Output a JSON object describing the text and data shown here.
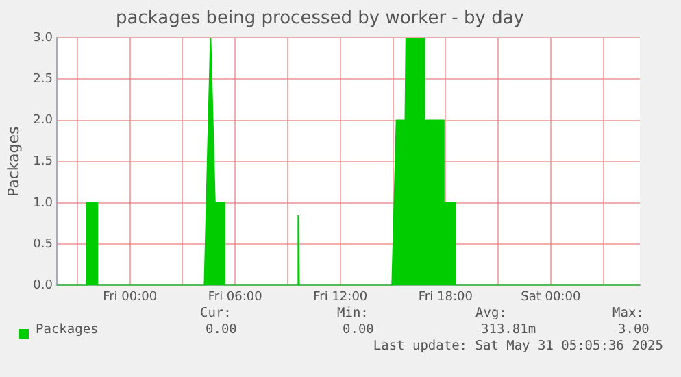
{
  "chart_data": {
    "type": "area",
    "title": "packages being processed by worker - by day",
    "ylabel": "Packages",
    "x": [
      "2025-05-29T19:50",
      "2025-05-29T21:33",
      "2025-05-29T21:33",
      "2025-05-29T22:09",
      "2025-05-29T22:09",
      "2025-05-30T04:15",
      "2025-05-30T04:36",
      "2025-05-30T04:51",
      "2025-05-30T05:24",
      "2025-05-30T05:24",
      "2025-05-30T09:33",
      "2025-05-30T09:36",
      "2025-05-30T09:39",
      "2025-05-30T14:57",
      "2025-05-30T15:12",
      "2025-05-30T15:42",
      "2025-05-30T15:45",
      "2025-05-30T16:48",
      "2025-05-30T16:48",
      "2025-05-30T17:54",
      "2025-05-30T17:54",
      "2025-05-30T18:33",
      "2025-05-30T18:33",
      "2025-05-31T05:05"
    ],
    "series": [
      {
        "name": "Packages",
        "color": "#00cc00",
        "values": [
          0,
          0,
          1,
          1,
          0,
          0,
          3,
          1,
          1,
          0,
          0,
          0.85,
          0,
          0,
          2,
          2,
          3,
          3,
          2,
          2,
          1,
          1,
          0,
          0
        ]
      }
    ],
    "xlim": [
      "2025-05-29T19:50",
      "2025-05-31T05:05"
    ],
    "xticks": [
      {
        "value": "2025-05-29T21:00",
        "label": null
      },
      {
        "value": "2025-05-30T00:00",
        "label": "Fri 00:00"
      },
      {
        "value": "2025-05-30T03:00",
        "label": null
      },
      {
        "value": "2025-05-30T06:00",
        "label": "Fri 06:00"
      },
      {
        "value": "2025-05-30T09:00",
        "label": null
      },
      {
        "value": "2025-05-30T12:00",
        "label": "Fri 12:00"
      },
      {
        "value": "2025-05-30T15:00",
        "label": null
      },
      {
        "value": "2025-05-30T18:00",
        "label": "Fri 18:00"
      },
      {
        "value": "2025-05-30T21:00",
        "label": null
      },
      {
        "value": "2025-05-31T00:00",
        "label": "Sat 00:00"
      },
      {
        "value": "2025-05-31T03:00",
        "label": null
      }
    ],
    "ylim": [
      0,
      3
    ],
    "yticks": [
      {
        "value": 0,
        "label": "0.0"
      },
      {
        "value": 0.5,
        "label": "0.5"
      },
      {
        "value": 1,
        "label": "1.0"
      },
      {
        "value": 1.5,
        "label": "1.5"
      },
      {
        "value": 2,
        "label": "2.0"
      },
      {
        "value": 2.5,
        "label": "2.5"
      },
      {
        "value": 3,
        "label": "3.0"
      }
    ],
    "grid": true,
    "legend": "bottom left",
    "annotations": [
      "Cur:",
      "Min:",
      "Avg:",
      "Max:",
      "0.00",
      "0.00",
      "313.81m",
      "3.00",
      "Last update: Sat May 31 05:05:36 2025"
    ]
  }
}
